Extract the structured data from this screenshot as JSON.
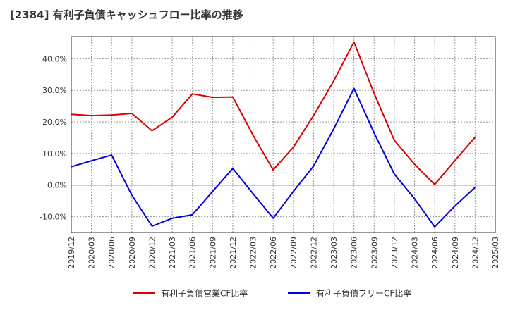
{
  "chart_data": {
    "type": "line",
    "title": "[2384]  有利子負債キャッシュフロー比率の推移",
    "x": [
      "2019/12",
      "2020/03",
      "2020/06",
      "2020/09",
      "2020/12",
      "2021/03",
      "2021/06",
      "2021/09",
      "2021/12",
      "2022/03",
      "2022/06",
      "2022/09",
      "2022/12",
      "2023/03",
      "2023/06",
      "2023/09",
      "2023/12",
      "2024/03",
      "2024/06",
      "2024/09",
      "2024/12",
      "2025/03"
    ],
    "ylim": [
      -15,
      47
    ],
    "yticks": [
      -10,
      0,
      10,
      20,
      30,
      40
    ],
    "ytick_labels": [
      "-10.0%",
      "0.0%",
      "10.0%",
      "20.0%",
      "30.0%",
      "40.0%"
    ],
    "grid": true,
    "legend_position": "bottom",
    "series": [
      {
        "name": "有利子負債営業CF比率",
        "color": "#dd0000",
        "values": [
          22.4,
          22.0,
          22.2,
          22.7,
          17.2,
          21.5,
          28.9,
          27.8,
          27.9,
          15.8,
          4.8,
          12.0,
          22.0,
          33.0,
          45.3,
          29.0,
          14.2,
          6.6,
          0.2,
          7.8,
          15.2,
          null
        ]
      },
      {
        "name": "有利子負債フリーCF比率",
        "color": "#0000dd",
        "values": [
          5.8,
          7.7,
          9.5,
          -3.2,
          -13.0,
          -10.5,
          -9.4,
          -2.0,
          5.3,
          -2.7,
          -10.5,
          -2.0,
          6.0,
          17.8,
          30.6,
          16.5,
          3.5,
          -4.3,
          -13.2,
          -6.6,
          -0.7,
          null
        ]
      }
    ]
  }
}
